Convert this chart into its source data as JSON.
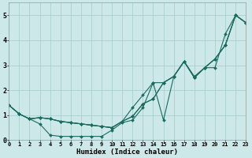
{
  "xlabel": "Humidex (Indice chaleur)",
  "ylabel": "",
  "background_color": "#cce8e8",
  "line_color": "#1a6b60",
  "grid_color": "#aacfcf",
  "xlim": [
    0,
    23
  ],
  "ylim": [
    0,
    5.5
  ],
  "xticks": [
    0,
    1,
    2,
    3,
    4,
    5,
    6,
    7,
    8,
    9,
    10,
    11,
    12,
    13,
    14,
    15,
    16,
    17,
    18,
    19,
    20,
    21,
    22,
    23
  ],
  "yticks": [
    0,
    1,
    2,
    3,
    4,
    5
  ],
  "series": [
    {
      "x": [
        0,
        1,
        2,
        3,
        4,
        5,
        6,
        7,
        8,
        9,
        10,
        11,
        12,
        13,
        14,
        15,
        16,
        17,
        18,
        19,
        20,
        21,
        22,
        23
      ],
      "y": [
        1.4,
        1.05,
        0.85,
        0.65,
        0.2,
        0.15,
        0.15,
        0.15,
        0.15,
        0.15,
        0.4,
        0.7,
        0.8,
        1.3,
        2.3,
        0.8,
        2.55,
        3.15,
        2.55,
        2.9,
        3.25,
        3.8,
        5.0,
        4.7
      ]
    },
    {
      "x": [
        0,
        1,
        2,
        3,
        4,
        5,
        6,
        7,
        8,
        9,
        10,
        11,
        12,
        13,
        14,
        15,
        16,
        17,
        18,
        19,
        20,
        21,
        22,
        23
      ],
      "y": [
        1.4,
        1.05,
        0.85,
        0.9,
        0.85,
        0.75,
        0.7,
        0.65,
        0.6,
        0.55,
        0.5,
        0.75,
        1.3,
        1.8,
        2.3,
        2.3,
        2.55,
        3.15,
        2.5,
        2.9,
        3.25,
        3.8,
        5.0,
        4.7
      ]
    },
    {
      "x": [
        0,
        1,
        2,
        3,
        4,
        5,
        6,
        7,
        8,
        9,
        10,
        11,
        12,
        13,
        14,
        15,
        16,
        17,
        18,
        19,
        20,
        21,
        22,
        23
      ],
      "y": [
        1.4,
        1.05,
        0.85,
        0.9,
        0.85,
        0.75,
        0.7,
        0.65,
        0.6,
        0.55,
        0.5,
        0.75,
        0.95,
        1.45,
        1.65,
        2.3,
        2.55,
        3.15,
        2.5,
        2.9,
        2.9,
        4.25,
        5.0,
        4.7
      ]
    },
    {
      "x": [
        0,
        1,
        2,
        3,
        4,
        5,
        6,
        7,
        8,
        9,
        10,
        11,
        12,
        13,
        14,
        15,
        16,
        17,
        18,
        19,
        20,
        21,
        22,
        23
      ],
      "y": [
        1.4,
        1.05,
        0.85,
        0.9,
        0.85,
        0.75,
        0.7,
        0.65,
        0.6,
        0.55,
        0.5,
        0.75,
        0.95,
        1.45,
        1.65,
        2.3,
        2.55,
        3.15,
        2.5,
        2.9,
        3.25,
        3.8,
        5.0,
        4.7
      ]
    }
  ]
}
